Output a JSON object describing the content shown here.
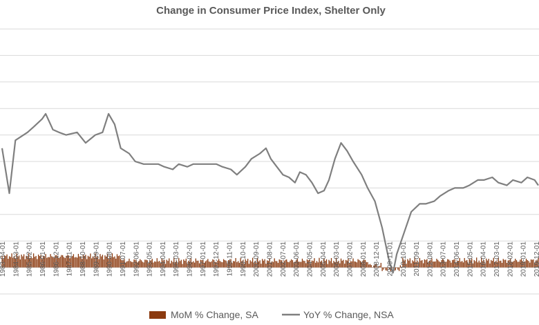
{
  "chart_data": {
    "type": "bar+line",
    "title": "Change in Consumer Price Index, Shelter Only",
    "ylim": [
      -0.01,
      0.09
    ],
    "grid": true,
    "legend_position": "bottom",
    "colors": {
      "mom": "#8B3A0F",
      "yoy": "#7F7F7F",
      "grid": "#D9D9D9"
    },
    "x_tick_labels": [
      "1983-04-01",
      "1984-03-01",
      "1985-02-01",
      "1986-01-01",
      "1986-12-01",
      "1987-11-01",
      "1988-10-01",
      "1989-09-01",
      "1990-08-01",
      "1991-07-01",
      "1992-06-01",
      "1993-05-01",
      "1994-04-01",
      "1995-03-01",
      "1996-02-01",
      "1997-01-01",
      "1997-12-01",
      "1998-11-01",
      "1999-10-01",
      "2000-09-01",
      "2001-08-01",
      "2002-07-01",
      "2003-06-01",
      "2004-05-01",
      "2005-04-01",
      "2006-03-01",
      "2007-02-01",
      "2008-01-01",
      "2008-12-01",
      "2009-11-01",
      "2010-10-01",
      "2011-09-01",
      "2012-08-01",
      "2013-07-01",
      "2014-06-01",
      "2015-05-01",
      "2016-04-01",
      "2017-03-01",
      "2018-02-01",
      "2019-01-01",
      "2019-12-01"
    ],
    "series": [
      {
        "name": "MoM % Change, SA",
        "type": "bar",
        "approx_range": [
          -0.002,
          0.004
        ]
      },
      {
        "name": "YoY % Change, NSA",
        "type": "line",
        "x": [
          "1983-04",
          "1983-10",
          "1984-03",
          "1985-01",
          "1985-06",
          "1986-01",
          "1986-04",
          "1986-10",
          "1987-03",
          "1987-09",
          "1988-06",
          "1989-01",
          "1989-09",
          "1990-03",
          "1990-08",
          "1991-01",
          "1991-06",
          "1992-01",
          "1992-06",
          "1993-01",
          "1993-06",
          "1994-01",
          "1994-06",
          "1995-01",
          "1995-06",
          "1996-01",
          "1996-06",
          "1997-01",
          "1997-06",
          "1998-01",
          "1998-06",
          "1999-01",
          "1999-06",
          "2000-01",
          "2000-06",
          "2001-01",
          "2001-06",
          "2001-10",
          "2002-03",
          "2002-08",
          "2003-01",
          "2003-06",
          "2003-10",
          "2004-03",
          "2004-08",
          "2005-01",
          "2005-06",
          "2005-10",
          "2006-03",
          "2006-08",
          "2007-01",
          "2007-06",
          "2008-01",
          "2008-06",
          "2008-12",
          "2009-06",
          "2009-12",
          "2010-03",
          "2010-06",
          "2010-12",
          "2011-06",
          "2012-01",
          "2012-06",
          "2013-01",
          "2013-06",
          "2014-01",
          "2014-06",
          "2015-01",
          "2015-06",
          "2016-01",
          "2016-06",
          "2017-01",
          "2017-06",
          "2018-01",
          "2018-06",
          "2019-01",
          "2019-06",
          "2019-12",
          "2020-03"
        ],
        "values": [
          0.045,
          0.028,
          0.048,
          0.051,
          0.053,
          0.056,
          0.058,
          0.052,
          0.051,
          0.05,
          0.051,
          0.047,
          0.05,
          0.051,
          0.058,
          0.054,
          0.045,
          0.043,
          0.04,
          0.039,
          0.039,
          0.039,
          0.038,
          0.037,
          0.039,
          0.038,
          0.039,
          0.039,
          0.039,
          0.039,
          0.038,
          0.037,
          0.035,
          0.038,
          0.041,
          0.043,
          0.045,
          0.041,
          0.038,
          0.035,
          0.034,
          0.032,
          0.036,
          0.035,
          0.032,
          0.028,
          0.029,
          0.033,
          0.041,
          0.047,
          0.044,
          0.04,
          0.035,
          0.03,
          0.025,
          0.015,
          0.002,
          -0.002,
          0.005,
          0.013,
          0.021,
          0.024,
          0.024,
          0.025,
          0.027,
          0.029,
          0.03,
          0.03,
          0.031,
          0.033,
          0.033,
          0.034,
          0.032,
          0.031,
          0.033,
          0.032,
          0.034,
          0.033,
          0.031
        ]
      }
    ]
  },
  "legend": {
    "mom_label": "MoM % Change, SA",
    "yoy_label": "YoY % Change, NSA"
  }
}
